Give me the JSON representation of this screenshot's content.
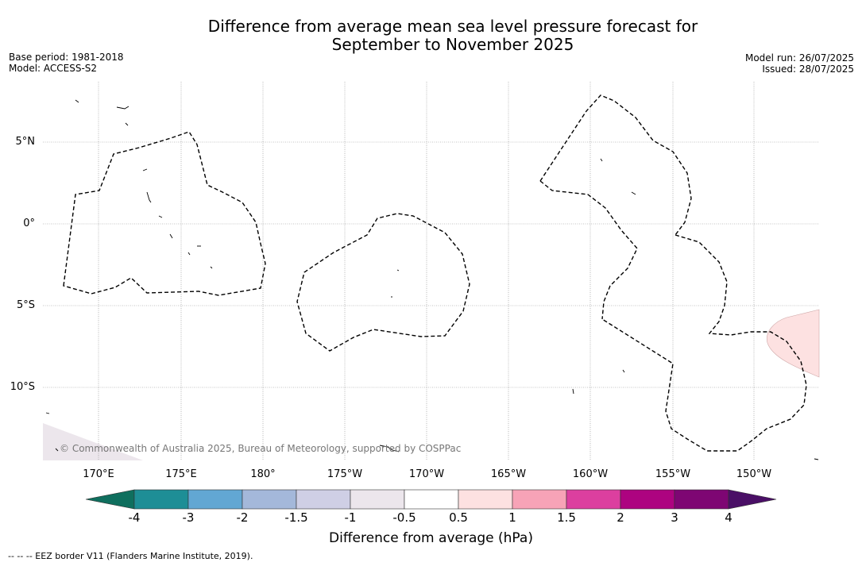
{
  "title": "Difference from average mean sea level pressure forecast for",
  "title_line2": "September to November 2025",
  "meta_left": [
    "Base period: 1981-2018",
    "Model: ACCESS-S2"
  ],
  "meta_right": [
    "Model run: 26/07/2025",
    "Issued: 28/07/2025"
  ],
  "lat_labels": [
    "5°N",
    "0°",
    "5°S",
    "10°S"
  ],
  "lon_labels": [
    "170°E",
    "175°E",
    "180°",
    "175°W",
    "170°W",
    "165°W",
    "160°W",
    "155°W",
    "150°W"
  ],
  "colorbar": {
    "title": "Difference from average (hPa)",
    "ticks": [
      "-4",
      "-3",
      "-2",
      "-1.5",
      "-1",
      "-0.5",
      "0.5",
      "1",
      "1.5",
      "2",
      "3",
      "4"
    ],
    "colors": [
      "#0f6f5e",
      "#1e8e96",
      "#62a7d3",
      "#a4b8da",
      "#cfcfe5",
      "#ece6ec",
      "#ffffff",
      "#fde1e1",
      "#f7a3b7",
      "#dc3f9f",
      "#ad0380",
      "#7e0673",
      "#4a0f66"
    ]
  },
  "copyright": "© Commonwealth of Australia 2025, Bureau of Meteorology, supported by COSPPac",
  "footnote": "-- -- -- EEZ border V11 (Flanders Marine Institute, 2019)."
}
